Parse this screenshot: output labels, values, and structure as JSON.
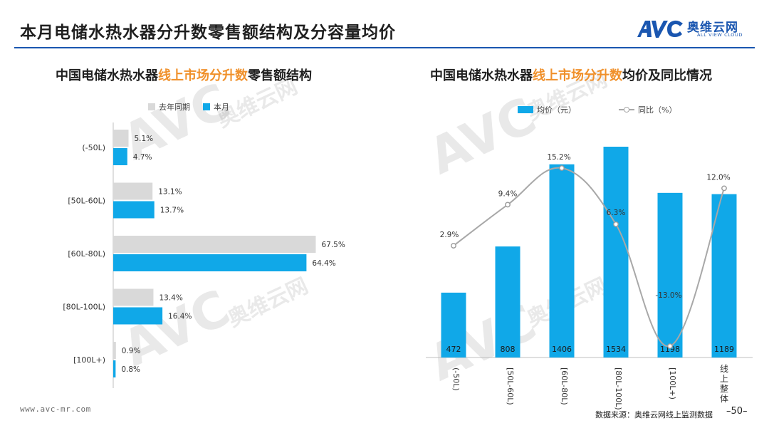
{
  "page": {
    "title": "本月电储水热水器分升数零售额结构及分容量均价",
    "brand_cn": "奥维云网",
    "brand_en": "ALL VIEW CLOUD",
    "brand_color": "#1a56b0",
    "accent_color": "#f0902a",
    "url": "www.avc-mr.com",
    "source": "数据来源：奥维云网线上监测数据",
    "page_number": "–50–",
    "watermark_big": "AVC",
    "watermark_cn": "奥维云网",
    "watermark_en": "ALL VIEW CLOUD"
  },
  "left_title": {
    "prefix": "中国电储水热水器",
    "highlight": "线上市场分升数",
    "suffix": "零售额结构"
  },
  "right_title": {
    "prefix": "中国电储水热水器",
    "highlight": "线上市场分升数",
    "suffix": "均价及同比情况"
  },
  "left_legend": {
    "last_year": "去年同期",
    "this_month": "本月"
  },
  "right_legend": {
    "avg_price": "均价（元）",
    "yoy": "同比（%）"
  },
  "chart_data": [
    {
      "type": "bar",
      "orientation": "horizontal",
      "categories": [
        "(-50L)",
        "[50L-60L)",
        "[60L-80L)",
        "[80L-100L)",
        "[100L+)"
      ],
      "series": [
        {
          "name": "去年同期",
          "color": "#d9d9d9",
          "values": [
            5.1,
            13.1,
            67.5,
            13.4,
            0.9
          ],
          "labels": [
            "5.1%",
            "13.1%",
            "67.5%",
            "13.4%",
            "0.9%"
          ]
        },
        {
          "name": "本月",
          "color": "#10a8e8",
          "values": [
            4.7,
            13.7,
            64.4,
            16.4,
            0.8
          ],
          "labels": [
            "4.7%",
            "13.7%",
            "64.4%",
            "16.4%",
            "0.8%"
          ]
        }
      ],
      "xlim": [
        0,
        70
      ],
      "grid": false,
      "legend": "top"
    },
    {
      "type": "bar",
      "categories": [
        "(-50L)",
        "[50L-60L)",
        "[60L-80L)",
        "[80L-100L)",
        "[100L+)",
        "线上整体"
      ],
      "series": [
        {
          "name": "均价（元）",
          "type": "bar",
          "color": "#10a8e8",
          "values": [
            472,
            808,
            1406,
            1534,
            1198,
            1189
          ],
          "labels": [
            "472",
            "808",
            "1406",
            "1534",
            "1198",
            "1189"
          ],
          "ylim": [
            0,
            1650
          ]
        },
        {
          "name": "同比（%）",
          "type": "line",
          "color": "#a8a8a8",
          "values": [
            2.9,
            9.4,
            15.2,
            6.3,
            -13.0,
            12.0
          ],
          "labels": [
            "2.9%",
            "9.4%",
            "15.2%",
            "6.3%",
            "-13.0%",
            "12.0%"
          ],
          "ylim": [
            -14,
            24
          ]
        }
      ],
      "grid": false,
      "legend": "top"
    }
  ]
}
